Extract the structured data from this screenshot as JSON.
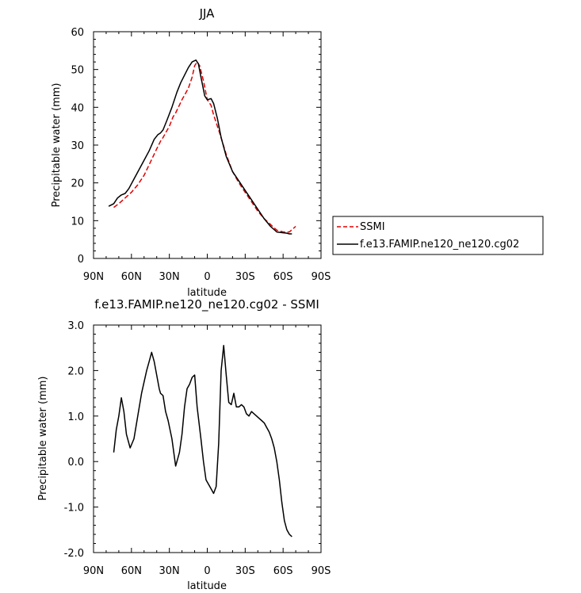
{
  "chart_data": [
    {
      "type": "line",
      "title": "JJA",
      "xlabel": "latitude",
      "ylabel": "Precipitable water (mm)",
      "xlim": [
        90,
        -90
      ],
      "ylim": [
        0,
        60
      ],
      "x_ticks": [
        90,
        60,
        30,
        0,
        -30,
        -60,
        -90
      ],
      "x_tick_labels": [
        "90N",
        "60N",
        "30N",
        "0",
        "30S",
        "60S",
        "90S"
      ],
      "y_ticks": [
        0,
        10,
        20,
        30,
        40,
        50,
        60
      ],
      "y_tick_labels": [
        "0",
        "10",
        "20",
        "30",
        "40",
        "50",
        "60"
      ],
      "legend_position": "right, outside the plot",
      "series": [
        {
          "name": "SSMI",
          "color": "#e00000",
          "dash": "dashed",
          "x": [
            74,
            70,
            65,
            60,
            55,
            50,
            45,
            40,
            37,
            35,
            30,
            27,
            25,
            20,
            15,
            12,
            10,
            8,
            6,
            3,
            0,
            -3,
            -5,
            -10,
            -15,
            -20,
            -25,
            -30,
            -35,
            -40,
            -45,
            -50,
            -55,
            -60,
            -65,
            -70
          ],
          "y": [
            13.5,
            14.5,
            16.0,
            17.5,
            19.5,
            22.0,
            25.5,
            29.0,
            31.0,
            32.0,
            35.0,
            37.5,
            38.5,
            42.0,
            45.0,
            48.0,
            51.0,
            52.0,
            51.0,
            47.0,
            42.0,
            40.5,
            38.0,
            33.0,
            27.5,
            23.0,
            20.0,
            17.5,
            15.0,
            12.5,
            10.5,
            9.0,
            7.5,
            7.0,
            7.0,
            8.5
          ]
        },
        {
          "name": "f.e13.FAMIP.ne120_ne120.cg02",
          "color": "#000000",
          "dash": "solid",
          "x": [
            78,
            74,
            71,
            68,
            65,
            62,
            58,
            54,
            50,
            46,
            42,
            39,
            37,
            35,
            32,
            28,
            24,
            21,
            18,
            15,
            12,
            9,
            7,
            5,
            2,
            0,
            -3,
            -5,
            -8,
            -11,
            -15,
            -20,
            -25,
            -30,
            -35,
            -40,
            -45,
            -50,
            -55,
            -60,
            -63,
            -65,
            -67
          ],
          "y": [
            13.8,
            14.5,
            16.0,
            16.8,
            17.2,
            18.5,
            21.0,
            23.5,
            26.0,
            28.5,
            31.5,
            32.8,
            33.2,
            34.0,
            36.5,
            40.0,
            44.0,
            46.5,
            48.5,
            50.5,
            52.0,
            52.5,
            51.5,
            48.0,
            43.0,
            42.0,
            42.3,
            41.0,
            37.0,
            32.0,
            27.0,
            23.0,
            20.5,
            18.0,
            15.5,
            13.0,
            10.5,
            8.5,
            7.0,
            6.8,
            6.7,
            6.5,
            6.5
          ]
        }
      ]
    },
    {
      "type": "line",
      "title": "f.e13.FAMIP.ne120_ne120.cg02 - SSMI",
      "xlabel": "latitude",
      "ylabel": "Precipitable water (mm)",
      "xlim": [
        90,
        -90
      ],
      "ylim": [
        -2.0,
        3.0
      ],
      "x_ticks": [
        90,
        60,
        30,
        0,
        -30,
        -60,
        -90
      ],
      "x_tick_labels": [
        "90N",
        "60N",
        "30N",
        "0",
        "30S",
        "60S",
        "90S"
      ],
      "y_ticks": [
        -2.0,
        -1.0,
        0.0,
        1.0,
        2.0,
        3.0
      ],
      "y_tick_labels": [
        "-2.0",
        "-1.0",
        "0.0",
        "1.0",
        "2.0",
        "3.0"
      ],
      "series": [
        {
          "color": "#000000",
          "dash": "solid",
          "x": [
            74,
            72,
            70,
            68,
            66,
            64,
            61,
            58,
            55,
            52,
            48,
            46,
            44,
            42,
            40,
            38,
            37,
            35,
            33,
            31,
            28,
            25,
            22,
            20,
            18,
            16,
            14,
            12,
            10,
            8,
            5,
            3,
            1,
            -1,
            -3,
            -5,
            -7,
            -9,
            -11,
            -13,
            -15,
            -17,
            -19,
            -21,
            -23,
            -25,
            -27,
            -29,
            -31,
            -33,
            -35,
            -37,
            -39,
            -41,
            -43,
            -45,
            -47,
            -49,
            -51,
            -53,
            -55,
            -57,
            -59,
            -61,
            -63,
            -65,
            -67
          ],
          "y": [
            0.2,
            0.7,
            1.0,
            1.4,
            1.1,
            0.6,
            0.3,
            0.5,
            1.0,
            1.5,
            2.0,
            2.2,
            2.4,
            2.2,
            1.9,
            1.6,
            1.5,
            1.45,
            1.1,
            0.9,
            0.5,
            -0.1,
            0.2,
            0.6,
            1.2,
            1.6,
            1.7,
            1.85,
            1.9,
            1.2,
            0.5,
            0.0,
            -0.4,
            -0.5,
            -0.6,
            -0.7,
            -0.55,
            0.4,
            2.0,
            2.55,
            1.9,
            1.3,
            1.25,
            1.5,
            1.2,
            1.2,
            1.25,
            1.2,
            1.05,
            1.0,
            1.1,
            1.05,
            1.0,
            0.95,
            0.9,
            0.85,
            0.75,
            0.65,
            0.5,
            0.3,
            0.0,
            -0.4,
            -0.9,
            -1.3,
            -1.5,
            -1.6,
            -1.65
          ]
        }
      ]
    }
  ]
}
